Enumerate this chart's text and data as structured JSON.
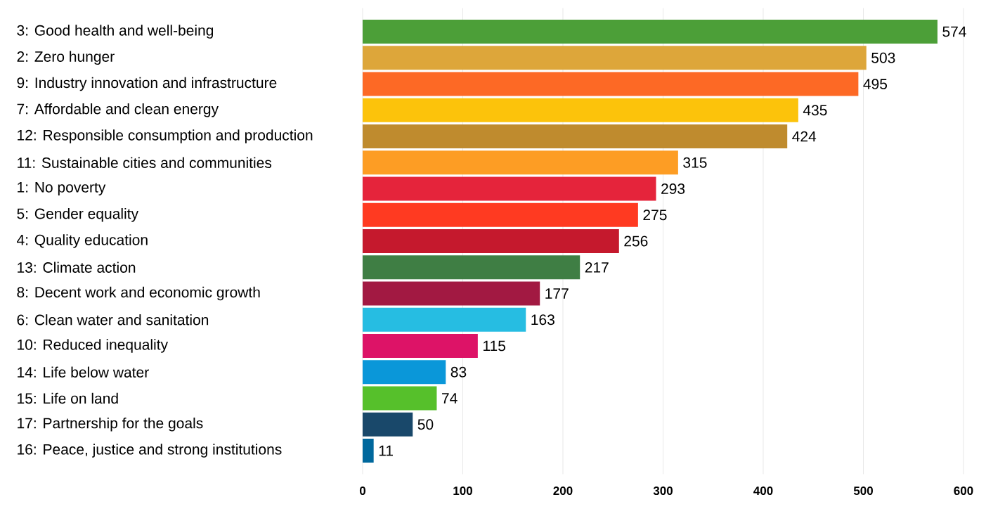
{
  "chart_data": {
    "type": "bar",
    "orientation": "horizontal",
    "categories": [
      "3:  Good health and well-being",
      "2:  Zero hunger",
      "9:  Industry innovation and infrastructure",
      "7:  Affordable and clean energy",
      "12:  Responsible consumption and production",
      "11:  Sustainable cities and communities",
      "1:  No poverty",
      "5:  Gender equality",
      "4:  Quality education",
      "13:  Climate action",
      "8:  Decent work and economic growth",
      "6:  Clean water and sanitation",
      "10:  Reduced inequality",
      "14:  Life below water",
      "15:  Life on land",
      "17:  Partnership for the goals",
      "16:  Peace, justice and strong institutions"
    ],
    "values": [
      574,
      503,
      495,
      435,
      424,
      315,
      293,
      275,
      256,
      217,
      177,
      163,
      115,
      83,
      74,
      50,
      11
    ],
    "colors": [
      "#4c9f38",
      "#dda63a",
      "#fd6925",
      "#fcc30b",
      "#bf8b2e",
      "#fd9d24",
      "#e5243b",
      "#ff3a21",
      "#c5192d",
      "#3f7e44",
      "#a21942",
      "#26bde2",
      "#dd1367",
      "#0a97d9",
      "#56c02b",
      "#19486a",
      "#00689d"
    ],
    "xlim": [
      0,
      600
    ],
    "xticks": [
      0,
      100,
      200,
      300,
      400,
      500,
      600
    ],
    "grid": "x",
    "data_labels": true
  }
}
